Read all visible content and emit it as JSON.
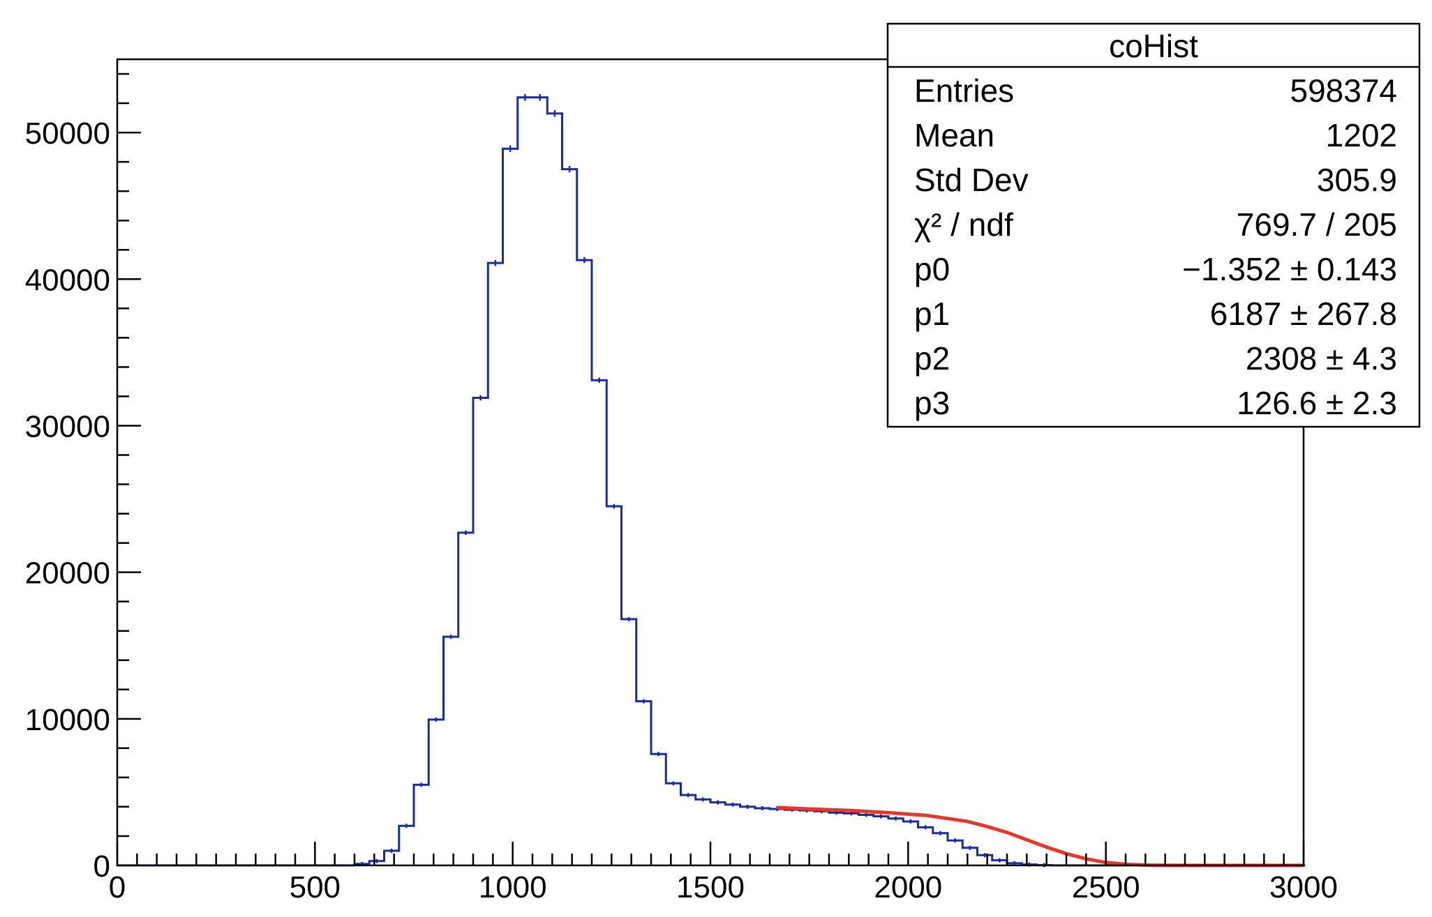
{
  "colors": {
    "histogram": "#1a2b9c",
    "fit": "#e8372b",
    "frame": "#000000",
    "background": "#ffffff"
  },
  "stats_box": {
    "title": "coHist",
    "rows": [
      {
        "label": "Entries",
        "value": "598374"
      },
      {
        "label": "Mean",
        "value": "1202"
      },
      {
        "label": "Std Dev",
        "value": "305.9"
      },
      {
        "label": "χ² / ndf",
        "value": "769.7 / 205"
      },
      {
        "label": "p0",
        "value": "−1.352 ± 0.143"
      },
      {
        "label": "p1",
        "value": "6187 ± 267.8"
      },
      {
        "label": "p2",
        "value": "2308 ± 4.3"
      },
      {
        "label": "p3",
        "value": "126.6 ± 2.3"
      }
    ]
  },
  "chart_data": {
    "type": "histogram",
    "title": "",
    "xlabel": "",
    "ylabel": "",
    "xlim": [
      0,
      3000
    ],
    "ylim": [
      0,
      55000
    ],
    "x_ticks": [
      0,
      500,
      1000,
      1500,
      2000,
      2500,
      3000
    ],
    "x_tick_labels": [
      "0",
      "500",
      "1000",
      "1500",
      "2000",
      "2500",
      "3000"
    ],
    "y_ticks": [
      0,
      10000,
      20000,
      30000,
      40000,
      50000
    ],
    "y_tick_labels": [
      "0",
      "10000",
      "20000",
      "30000",
      "40000",
      "50000"
    ],
    "grid": false,
    "bin_width": 37.5,
    "bin_edges_start": 0,
    "series": [
      {
        "kind": "histogram",
        "values": [
          0,
          0,
          0,
          0,
          0,
          0,
          0,
          0,
          0,
          0,
          0,
          0,
          0,
          0,
          0,
          0,
          100,
          300,
          1000,
          2700,
          5500,
          9950,
          15600,
          22700,
          31900,
          41100,
          48900,
          52400,
          52400,
          51300,
          47500,
          41300,
          33100,
          24500,
          16800,
          11200,
          7600,
          5600,
          4800,
          4500,
          4300,
          4150,
          4000,
          3900,
          3850,
          3800,
          3750,
          3700,
          3600,
          3550,
          3450,
          3350,
          3200,
          3000,
          2600,
          2200,
          1700,
          1200,
          700,
          350,
          150,
          60,
          20,
          0,
          0,
          0,
          0,
          0,
          0,
          0,
          0,
          0,
          0,
          0,
          0,
          0,
          0,
          0,
          0,
          0
        ]
      },
      {
        "kind": "fit",
        "x": [
          1670,
          1750,
          1850,
          1950,
          2050,
          2150,
          2200,
          2250,
          2300,
          2350,
          2400,
          2450,
          2500,
          2550,
          2600,
          2650,
          2700,
          2800,
          3000
        ],
        "values": [
          3950,
          3850,
          3750,
          3600,
          3400,
          3000,
          2650,
          2250,
          1750,
          1250,
          800,
          450,
          200,
          80,
          25,
          5,
          0,
          0,
          0
        ]
      }
    ]
  }
}
